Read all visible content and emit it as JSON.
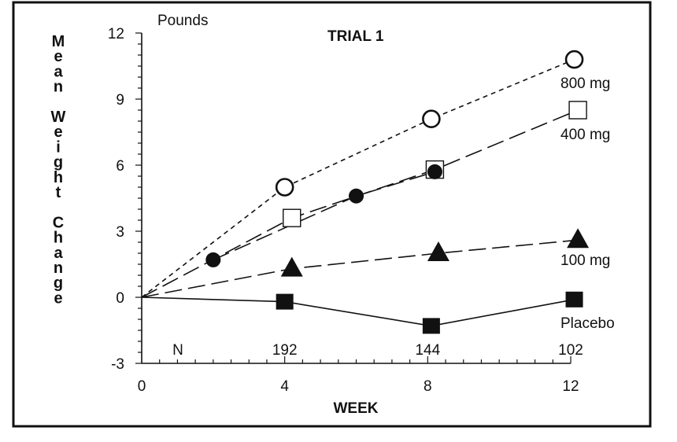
{
  "chart_data": {
    "type": "line",
    "title": "TRIAL 1",
    "units_label": "Pounds",
    "xlabel": "WEEK",
    "ylabel": "Mean Weight Change",
    "xlim": [
      0,
      12
    ],
    "ylim": [
      -3,
      12
    ],
    "x_ticks": [
      0,
      4,
      8,
      12
    ],
    "y_ticks": [
      -3,
      0,
      3,
      6,
      9,
      12
    ],
    "grid": false,
    "n_row": {
      "label": "N",
      "x": [
        4,
        8,
        12
      ],
      "values": [
        "192",
        "144",
        "102"
      ]
    },
    "series": [
      {
        "name": "800 mg",
        "marker": "open-circle",
        "line": "short-dash",
        "x": [
          0,
          4,
          8.1,
          12.1
        ],
        "y": [
          0,
          5.0,
          8.1,
          10.8
        ]
      },
      {
        "name": "400 mg",
        "marker": "open-square",
        "line": "long-dash",
        "x": [
          0,
          4.2,
          8.2,
          12.2
        ],
        "y": [
          0,
          3.6,
          5.8,
          8.5
        ]
      },
      {
        "name": "",
        "marker": "filled-circle",
        "line": "long-dash",
        "x": [
          2,
          6,
          8.2
        ],
        "y": [
          1.7,
          4.6,
          5.7
        ]
      },
      {
        "name": "100 mg",
        "marker": "filled-triangle",
        "line": "long-dash",
        "x": [
          0,
          4.2,
          8.3,
          12.2
        ],
        "y": [
          0,
          1.3,
          2.0,
          2.6
        ]
      },
      {
        "name": "Placebo",
        "marker": "filled-square",
        "line": "solid",
        "x": [
          0,
          4,
          8.1,
          12.1
        ],
        "y": [
          0,
          -0.2,
          -1.3,
          -0.1
        ]
      }
    ]
  }
}
